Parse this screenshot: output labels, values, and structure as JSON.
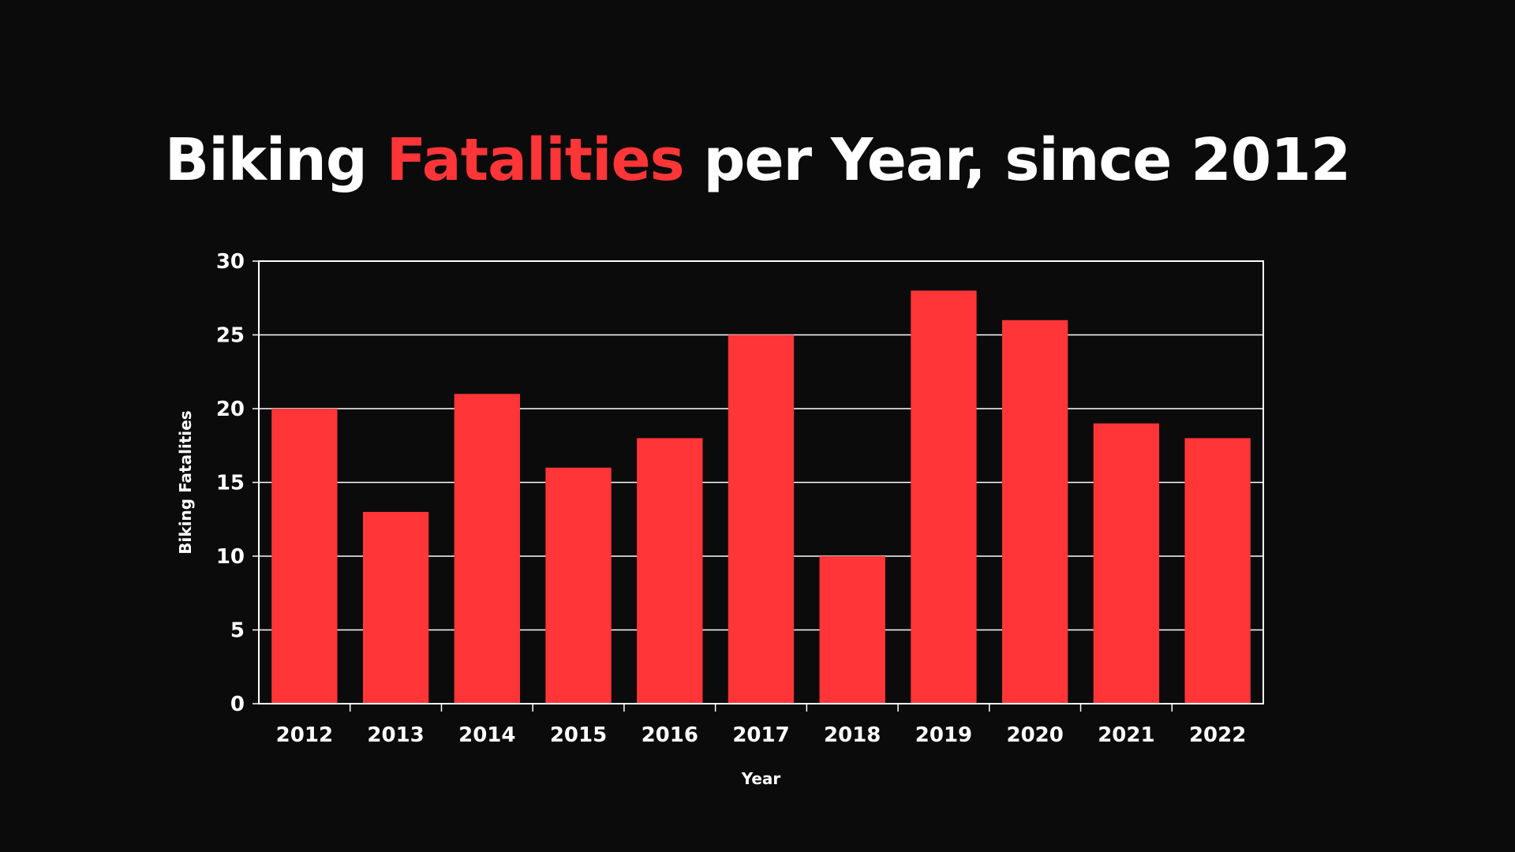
{
  "title": {
    "part1": "Biking ",
    "accent": "Fatalities",
    "part2": " per Year, since 2012"
  },
  "colors": {
    "background": "#0b0b0b",
    "bar": "#ff3538",
    "text": "#ffffff",
    "grid": "#ffffff"
  },
  "chart_data": {
    "type": "bar",
    "title": "Biking Fatalities per Year, since 2012",
    "xlabel": "Year",
    "ylabel": "Biking Fatalities",
    "categories": [
      "2012",
      "2013",
      "2014",
      "2015",
      "2016",
      "2017",
      "2018",
      "2019",
      "2020",
      "2021",
      "2022"
    ],
    "values": [
      20,
      13,
      21,
      16,
      18,
      25,
      10,
      28,
      26,
      19,
      18
    ],
    "ylim": [
      0,
      30
    ],
    "yticks": [
      0,
      5,
      10,
      15,
      20,
      25,
      30
    ],
    "grid": true,
    "legend": "none"
  }
}
